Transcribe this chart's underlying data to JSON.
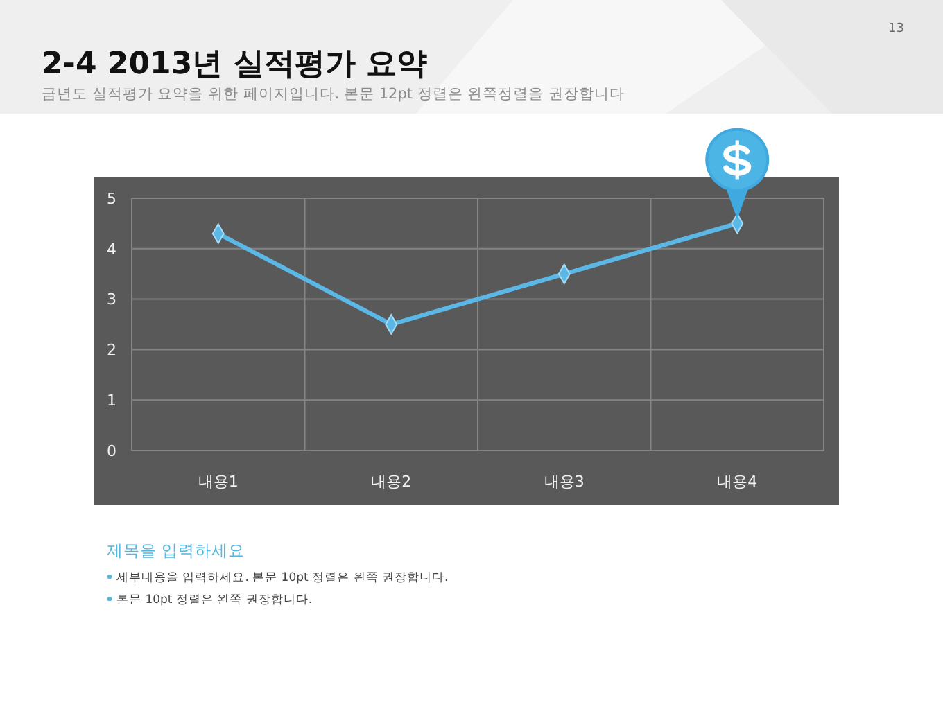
{
  "chart_data": {
    "type": "line",
    "title": "2-4 2013년 실적평가 요약",
    "subtitle": "금년도 실적평가 요약을 위한 페이지입니다. 본문 12pt 정렬은 왼쪽정렬을 권장합니다",
    "categories": [
      "내용1",
      "내용2",
      "내용3",
      "내용4"
    ],
    "series": [
      {
        "color": "#5bb8e6",
        "values": [
          4.3,
          2.5,
          3.5,
          4.5
        ]
      }
    ],
    "ylim": [
      0,
      5
    ],
    "yticks": [
      0,
      1,
      2,
      3,
      4,
      5
    ],
    "grid": true,
    "marker": "diamond",
    "line_style": "solid",
    "annotations": [
      "13",
      "제목을 입력하세요",
      "세부내용을 입력하세요. 본문 10pt 정렬은 왼쪽 권장합니다.",
      "본문 10pt 정렬은 왼쪽 권장합니다."
    ]
  }
}
